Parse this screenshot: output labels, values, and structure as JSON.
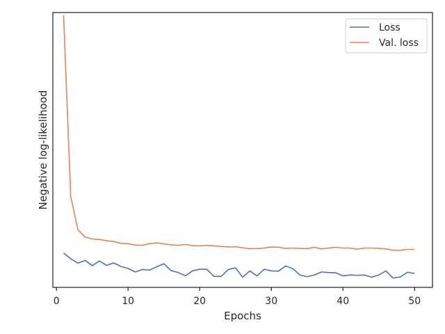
{
  "chart_data": {
    "type": "line",
    "xlabel": "Epochs",
    "ylabel": "Negative log-likelihood",
    "xlim": [
      -0.5,
      52.5
    ],
    "ylim": [
      0,
      100
    ],
    "xticks": [
      0,
      10,
      20,
      30,
      40,
      50
    ],
    "yticks": [],
    "grid": false,
    "legend_position": "top-right",
    "series": [
      {
        "name": "Loss",
        "color": "#4c72b0",
        "x": [
          1,
          2,
          3,
          4,
          5,
          6,
          7,
          8,
          9,
          10,
          11,
          12,
          13,
          14,
          15,
          16,
          17,
          18,
          19,
          20,
          21,
          22,
          23,
          24,
          25,
          26,
          27,
          28,
          29,
          30,
          31,
          32,
          33,
          34,
          35,
          36,
          37,
          38,
          39,
          40,
          41,
          42,
          43,
          44,
          45,
          46,
          47,
          48,
          49,
          50
        ],
        "y": [
          12.5,
          10.4,
          8.8,
          9.8,
          7.9,
          9.6,
          8.0,
          8.9,
          7.6,
          6.9,
          5.6,
          6.5,
          6.3,
          7.5,
          8.6,
          6.1,
          5.4,
          4.2,
          6.0,
          6.6,
          6.6,
          4.0,
          4.0,
          6.5,
          7.1,
          3.7,
          6.0,
          4.2,
          6.6,
          6.0,
          5.9,
          7.8,
          6.8,
          4.5,
          3.9,
          4.5,
          5.6,
          5.4,
          5.3,
          4.2,
          4.5,
          4.4,
          4.5,
          3.7,
          4.5,
          6.0,
          3.4,
          3.8,
          5.5,
          5.1
        ]
      },
      {
        "name": "Val. loss",
        "color": "#dd8452",
        "x": [
          1,
          2,
          3,
          4,
          5,
          6,
          7,
          8,
          9,
          10,
          11,
          12,
          13,
          14,
          15,
          16,
          17,
          18,
          19,
          20,
          21,
          22,
          23,
          24,
          25,
          26,
          27,
          28,
          29,
          30,
          31,
          32,
          33,
          34,
          35,
          36,
          37,
          38,
          39,
          40,
          41,
          42,
          43,
          44,
          45,
          46,
          47,
          48,
          49,
          50
        ],
        "y": [
          99.0,
          33.0,
          21.0,
          18.3,
          17.6,
          17.4,
          17.0,
          16.7,
          16.0,
          15.9,
          15.4,
          15.3,
          15.9,
          16.2,
          15.8,
          15.5,
          15.3,
          15.6,
          15.2,
          15.1,
          15.3,
          15.1,
          14.9,
          14.7,
          14.8,
          14.4,
          14.1,
          14.1,
          14.3,
          14.7,
          14.6,
          14.2,
          14.3,
          14.2,
          14.1,
          14.6,
          14.0,
          14.3,
          14.6,
          14.3,
          14.3,
          13.9,
          14.3,
          14.3,
          14.2,
          14.0,
          13.5,
          13.5,
          13.8,
          13.8
        ]
      }
    ]
  }
}
